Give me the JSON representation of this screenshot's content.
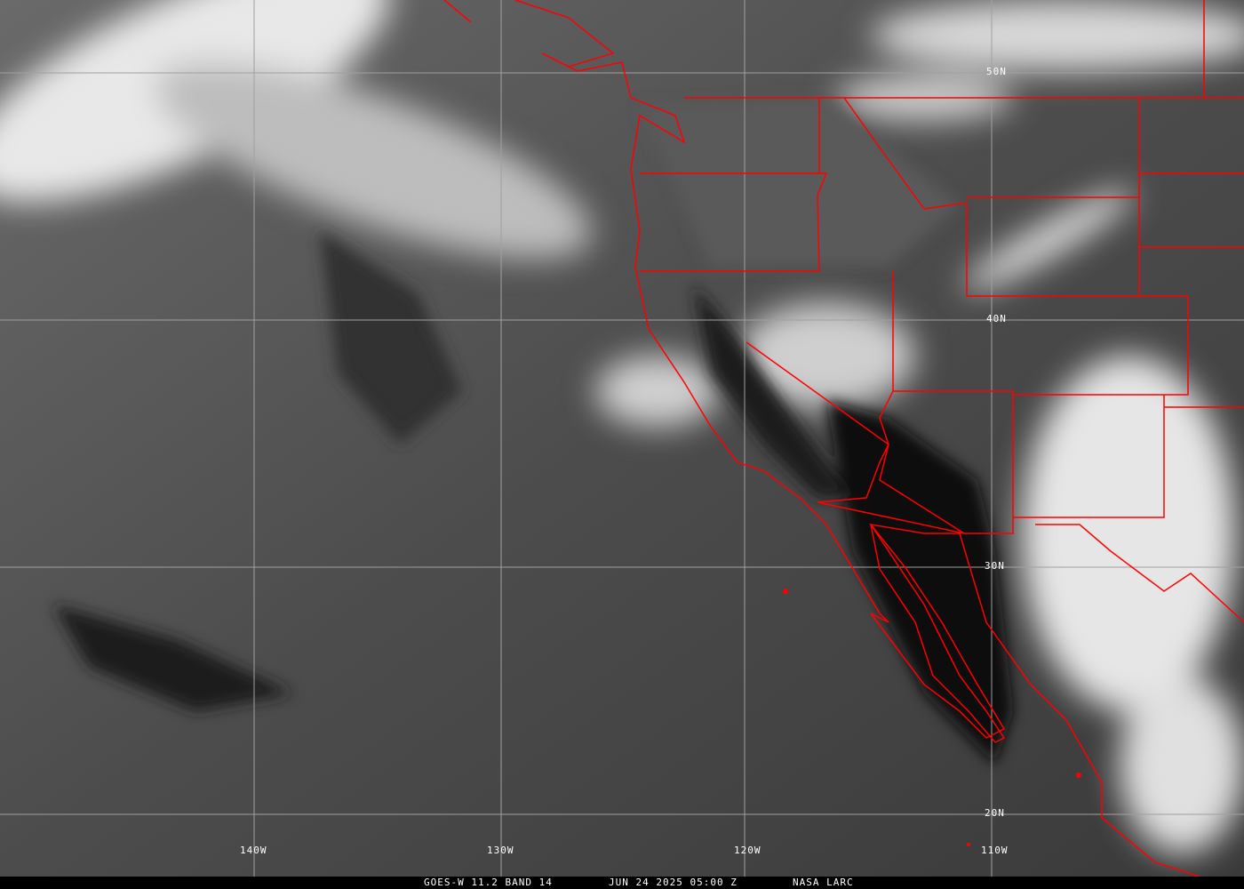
{
  "caption": {
    "satellite": "GOES-W 11.2 BAND 14",
    "datetime": "JUN 24 2025 05:00 Z",
    "source": "NASA LARC"
  },
  "grid": {
    "lat_labels": [
      "50N",
      "40N",
      "30N",
      "20N"
    ],
    "lon_labels": [
      "140W",
      "130W",
      "120W",
      "110W"
    ]
  },
  "colors": {
    "borders": "#ff0000",
    "grid": "#a0a0a0"
  }
}
